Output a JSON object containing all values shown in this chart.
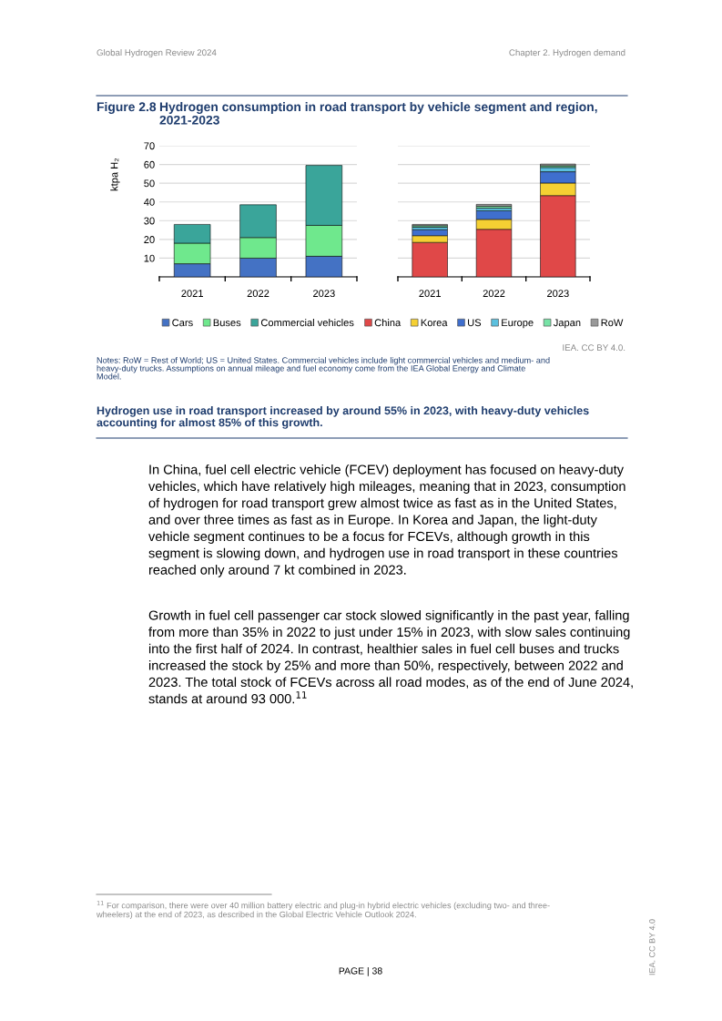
{
  "chart_data": [
    {
      "type": "bar",
      "title": "Hydrogen consumption in road transport by vehicle segment and region,\n2021-2023",
      "ylabel": "ktpa H₂",
      "categories": [
        "2021",
        "2022",
        "2023"
      ],
      "stacked": true,
      "series": [
        {
          "name": "Cars",
          "color": "#4472c4",
          "values": [
            7,
            10,
            11
          ]
        },
        {
          "name": "Buses",
          "color": "#6fe88d",
          "values": [
            11,
            11,
            16.5
          ]
        },
        {
          "name": "Commercial vehicles",
          "color": "#3aa59a",
          "values": [
            10,
            17.5,
            32
          ]
        }
      ],
      "ylim": [
        0,
        70
      ],
      "yticks": [
        {
          "value": 0,
          "label": null
        },
        10,
        20,
        30,
        40,
        50,
        60,
        70
      ],
      "grid": "y",
      "legend": "bottom",
      "annotations": [
        "Global Hydrogen Review 2024",
        "Chapter 2. Hydrogen demand",
        "Figure 2.8",
        "IEA. CC BY 4.0.",
        "Notes: RoW = Rest of World; US = United States. Commercial vehicles include light commercial vehicles and medium- and\nheavy-duty trucks. Assumptions on annual mileage and fuel economy come from the IEA Global Energy and Climate\nModel.",
        "Hydrogen use in road transport increased by around 55% in 2023, with heavy-duty vehicles\naccounting for almost 85% of this growth.",
        "In China, fuel cell electric vehicle (FCEV) deployment has focused on heavy-duty\nvehicles, which have relatively high mileages, meaning that in 2023, consumption\nof hydrogen for road transport grew almost twice as fast as in the United States,\nand over three times as fast as in Europe. In Korea and Japan, the light-duty\nvehicle segment continues to be a focus for FCEVs, although growth in this\nsegment is slowing down, and hydrogen use in road transport in these countries\nreached only around 7 kt combined in 2023.",
        "Growth in fuel cell passenger car stock slowed significantly in the past year, falling\nfrom more than 35% in 2022 to just under 15% in 2023, with slow sales continuing\ninto the first half of 2024. In contrast, healthier sales in fuel cell buses and trucks\nincreased the stock by 25% and more than 50%, respectively, between 2022 and\n2023. The total stock of FCEVs across all road modes, as of the end of June 2024,\nstands at around 93 000.$^{11}$",
        "$^{11}$ For comparison, there were over 40 million battery electric and plug-in hybrid electric vehicles (excluding two- and three-\nwheelers) at the end of 2023, as described in the Global Electric Vehicle Outlook 2024.",
        "PAGE | 38",
        "IEA. CC BY 4.0"
      ]
    },
    {
      "type": "bar",
      "categories": [
        "2021",
        "2022",
        "2023"
      ],
      "stacked": true,
      "series": [
        {
          "name": "China",
          "color": "#e04848",
          "values": [
            18.4,
            25.4,
            43.4
          ]
        },
        {
          "name": "Korea",
          "color": "#f5d033",
          "values": [
            3.6,
            5.3,
            6.7
          ]
        },
        {
          "name": "US",
          "color": "#3f6fce",
          "values": [
            3.2,
            4.6,
            6.0
          ]
        },
        {
          "name": "Europe",
          "color": "#5bc0de",
          "values": [
            1.3,
            1.4,
            2.3
          ]
        },
        {
          "name": "Japan",
          "color": "#77e3a6",
          "values": [
            0.8,
            1.0,
            0.9
          ]
        },
        {
          "name": "RoW",
          "color": "#999999",
          "values": [
            0.7,
            1.0,
            0.9
          ]
        }
      ],
      "ylim": [
        0,
        70
      ],
      "yticks": [
        {
          "value": 0,
          "label": null
        },
        10,
        20,
        30,
        40,
        50,
        60,
        70
      ],
      "grid": "y",
      "legend": "bottom",
      "tick_labels": "x"
    }
  ]
}
